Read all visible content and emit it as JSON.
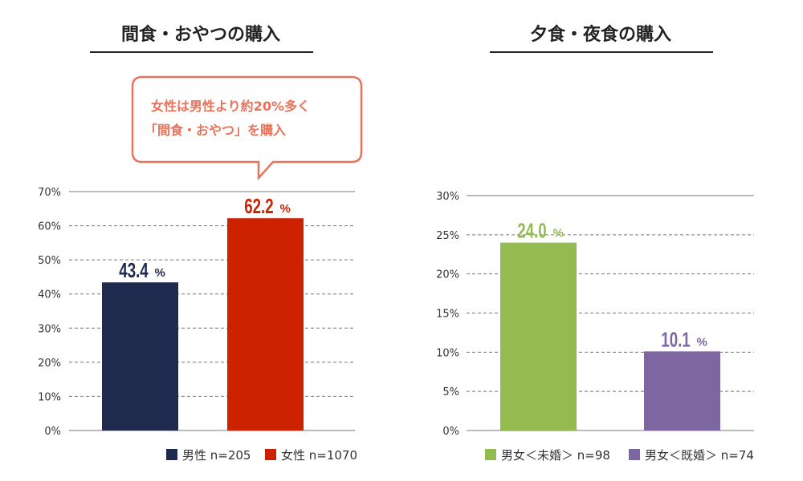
{
  "callout": {
    "line1": "女性は男性より約20%多く",
    "line2": "「間食・おやつ」を購入",
    "color": "#e8735a"
  },
  "chart_data": [
    {
      "type": "bar",
      "title": "間食・おやつの購入",
      "categories": [
        "男性 n=205",
        "女性 n=1070"
      ],
      "values": [
        43.4,
        62.2
      ],
      "value_labels": [
        "43.4",
        "62.2"
      ],
      "unit": "%",
      "colors": [
        "#1e2a4e",
        "#cc2200"
      ],
      "ylim": [
        0,
        70
      ],
      "yticks": [
        0,
        10,
        20,
        30,
        40,
        50,
        60,
        70
      ],
      "ytick_labels": [
        "0%",
        "10%",
        "20%",
        "30%",
        "40%",
        "50%",
        "60%",
        "70%"
      ],
      "grid": true,
      "legend": "bottom-right"
    },
    {
      "type": "bar",
      "title": "夕食・夜食の購入",
      "categories": [
        "男女＜未婚＞ n=98",
        "男女＜既婚＞ n=74"
      ],
      "values": [
        24.0,
        10.1
      ],
      "value_labels": [
        "24.0",
        "10.1"
      ],
      "unit": "%",
      "colors": [
        "#93bb50",
        "#7e66a0"
      ],
      "ylim": [
        0,
        30
      ],
      "yticks": [
        0,
        5,
        10,
        15,
        20,
        25,
        30
      ],
      "ytick_labels": [
        "0%",
        "5%",
        "10%",
        "15%",
        "20%",
        "25%",
        "30%"
      ],
      "grid": true,
      "legend": "bottom-right"
    }
  ]
}
